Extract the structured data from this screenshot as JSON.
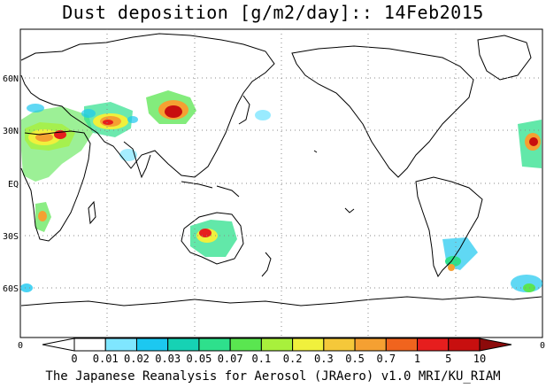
{
  "title": "Dust deposition [g/m2/day]:: 14Feb2015",
  "footer": "The Japanese Reanalysis for Aerosol (JRAero) v1.0 MRI/KU_RIAM",
  "lat_labels": [
    "60N",
    "30N",
    "EQ",
    "30S",
    "60S"
  ],
  "axis_edge_labels": {
    "left": "0",
    "right": "0"
  },
  "colorbar": {
    "thresholds": [
      "0",
      "0.01",
      "0.02",
      "0.03",
      "0.05",
      "0.07",
      "0.1",
      "0.2",
      "0.3",
      "0.5",
      "0.7",
      "1",
      "5",
      "10"
    ],
    "colors": [
      "#ffffff",
      "#ffffff",
      "#7fe6ff",
      "#1cc8f0",
      "#16d2b4",
      "#2ee08c",
      "#5ae650",
      "#a8f03c",
      "#f0f03c",
      "#f5c83a",
      "#f5a032",
      "#f0641e",
      "#e61e1e",
      "#c80f0f",
      "#8c0a0a"
    ]
  }
}
